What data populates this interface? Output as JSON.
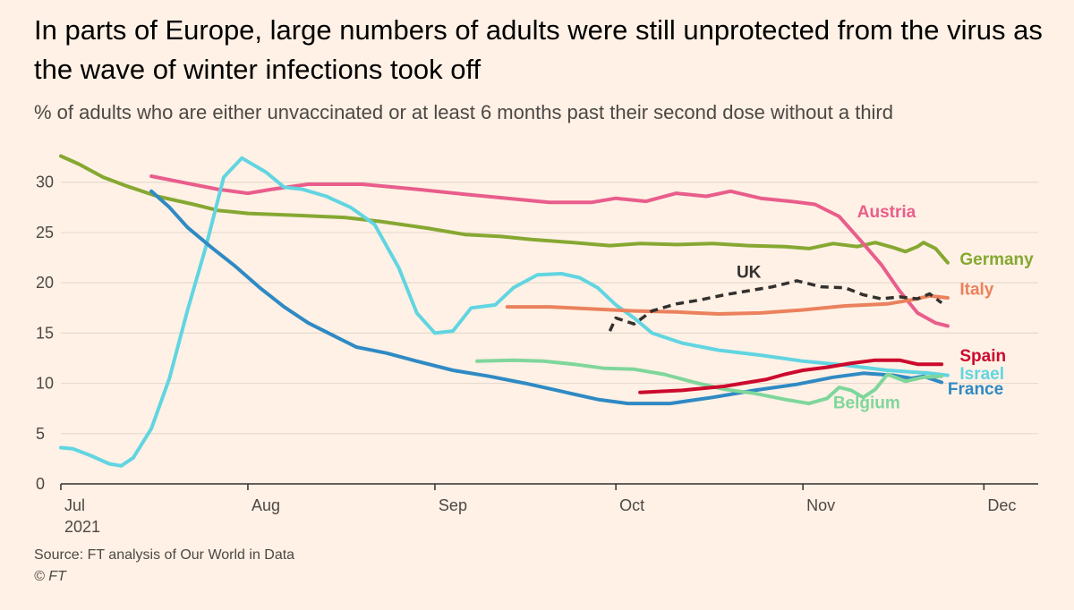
{
  "title": "In parts of Europe, large numbers of adults were still unprotected from the virus as the wave of winter infections took off",
  "subtitle": "% of adults who are either unvaccinated or at least 6 months past their second dose without a third",
  "source": "Source: FT analysis of Our World in Data",
  "copyright": "© FT",
  "chart_data": {
    "type": "line",
    "x_type": "date",
    "xlim": [
      "2021-07-01",
      "2021-12-10"
    ],
    "ylim": [
      0,
      33
    ],
    "y_ticks": [
      0,
      5,
      10,
      15,
      20,
      25,
      30
    ],
    "y_tick_labels": [
      "0",
      "5",
      "10",
      "15",
      "20",
      "25",
      "30"
    ],
    "x_ticks": [
      {
        "date": "2021-07-01",
        "label": "Jul",
        "sublabel": "2021"
      },
      {
        "date": "2021-08-01",
        "label": "Aug",
        "sublabel": ""
      },
      {
        "date": "2021-09-01",
        "label": "Sep",
        "sublabel": ""
      },
      {
        "date": "2021-10-01",
        "label": "Oct",
        "sublabel": ""
      },
      {
        "date": "2021-11-01",
        "label": "Nov",
        "sublabel": ""
      },
      {
        "date": "2021-12-01",
        "label": "Dec",
        "sublabel": ""
      }
    ],
    "grid": true,
    "legend": "inline labels",
    "series": [
      {
        "name": "Germany",
        "color": "#86A832",
        "dash": false,
        "points": [
          [
            "2021-07-01",
            32.6
          ],
          [
            "2021-07-04",
            31.8
          ],
          [
            "2021-07-08",
            30.5
          ],
          [
            "2021-07-12",
            29.6
          ],
          [
            "2021-07-17",
            28.6
          ],
          [
            "2021-07-23",
            27.8
          ],
          [
            "2021-07-27",
            27.2
          ],
          [
            "2021-08-01",
            26.9
          ],
          [
            "2021-08-09",
            26.7
          ],
          [
            "2021-08-17",
            26.5
          ],
          [
            "2021-08-23",
            26.1
          ],
          [
            "2021-08-31",
            25.4
          ],
          [
            "2021-09-06",
            24.8
          ],
          [
            "2021-09-12",
            24.6
          ],
          [
            "2021-09-17",
            24.3
          ],
          [
            "2021-09-24",
            24.0
          ],
          [
            "2021-09-30",
            23.7
          ],
          [
            "2021-10-05",
            23.9
          ],
          [
            "2021-10-11",
            23.8
          ],
          [
            "2021-10-17",
            23.9
          ],
          [
            "2021-10-23",
            23.7
          ],
          [
            "2021-10-29",
            23.6
          ],
          [
            "2021-11-02",
            23.4
          ],
          [
            "2021-11-06",
            23.9
          ],
          [
            "2021-11-10",
            23.6
          ],
          [
            "2021-11-13",
            24.0
          ],
          [
            "2021-11-16",
            23.5
          ],
          [
            "2021-11-18",
            23.1
          ],
          [
            "2021-11-20",
            23.6
          ],
          [
            "2021-11-21",
            24.0
          ],
          [
            "2021-11-23",
            23.4
          ],
          [
            "2021-11-25",
            22.0
          ]
        ]
      },
      {
        "name": "Austria",
        "color": "#E95D8C",
        "dash": false,
        "points": [
          [
            "2021-07-16",
            30.6
          ],
          [
            "2021-07-21",
            30.0
          ],
          [
            "2021-07-27",
            29.3
          ],
          [
            "2021-08-01",
            28.9
          ],
          [
            "2021-08-05",
            29.3
          ],
          [
            "2021-08-11",
            29.8
          ],
          [
            "2021-08-20",
            29.8
          ],
          [
            "2021-08-29",
            29.3
          ],
          [
            "2021-09-06",
            28.8
          ],
          [
            "2021-09-13",
            28.4
          ],
          [
            "2021-09-20",
            28.0
          ],
          [
            "2021-09-27",
            28.0
          ],
          [
            "2021-10-01",
            28.4
          ],
          [
            "2021-10-06",
            28.1
          ],
          [
            "2021-10-11",
            28.9
          ],
          [
            "2021-10-16",
            28.6
          ],
          [
            "2021-10-20",
            29.1
          ],
          [
            "2021-10-25",
            28.4
          ],
          [
            "2021-10-30",
            28.1
          ],
          [
            "2021-11-03",
            27.8
          ],
          [
            "2021-11-07",
            26.6
          ],
          [
            "2021-11-11",
            23.9
          ],
          [
            "2021-11-14",
            21.8
          ],
          [
            "2021-11-17",
            19.2
          ],
          [
            "2021-11-20",
            17.0
          ],
          [
            "2021-11-23",
            16.0
          ],
          [
            "2021-11-25",
            15.7
          ]
        ]
      },
      {
        "name": "Israel",
        "color": "#61D5E1",
        "dash": false,
        "points": [
          [
            "2021-07-01",
            3.6
          ],
          [
            "2021-07-03",
            3.5
          ],
          [
            "2021-07-06",
            2.8
          ],
          [
            "2021-07-09",
            2.0
          ],
          [
            "2021-07-11",
            1.8
          ],
          [
            "2021-07-13",
            2.6
          ],
          [
            "2021-07-16",
            5.5
          ],
          [
            "2021-07-19",
            10.5
          ],
          [
            "2021-07-22",
            17.3
          ],
          [
            "2021-07-25",
            23.5
          ],
          [
            "2021-07-28",
            30.5
          ],
          [
            "2021-07-31",
            32.4
          ],
          [
            "2021-08-04",
            31.0
          ],
          [
            "2021-08-07",
            29.5
          ],
          [
            "2021-08-10",
            29.3
          ],
          [
            "2021-08-14",
            28.6
          ],
          [
            "2021-08-18",
            27.5
          ],
          [
            "2021-08-22",
            25.8
          ],
          [
            "2021-08-26",
            21.5
          ],
          [
            "2021-08-29",
            17.0
          ],
          [
            "2021-09-01",
            15.0
          ],
          [
            "2021-09-04",
            15.2
          ],
          [
            "2021-09-07",
            17.5
          ],
          [
            "2021-09-11",
            17.8
          ],
          [
            "2021-09-14",
            19.5
          ],
          [
            "2021-09-18",
            20.8
          ],
          [
            "2021-09-22",
            20.9
          ],
          [
            "2021-09-25",
            20.5
          ],
          [
            "2021-09-28",
            19.5
          ],
          [
            "2021-10-01",
            17.8
          ],
          [
            "2021-10-04",
            16.5
          ],
          [
            "2021-10-07",
            15.0
          ],
          [
            "2021-10-12",
            14.0
          ],
          [
            "2021-10-18",
            13.3
          ],
          [
            "2021-10-25",
            12.8
          ],
          [
            "2021-11-01",
            12.2
          ],
          [
            "2021-11-08",
            11.8
          ],
          [
            "2021-11-15",
            11.3
          ],
          [
            "2021-11-22",
            11.0
          ],
          [
            "2021-11-25",
            10.8
          ]
        ]
      },
      {
        "name": "France",
        "color": "#2F8AC4",
        "dash": false,
        "points": [
          [
            "2021-07-16",
            29.1
          ],
          [
            "2021-07-19",
            27.5
          ],
          [
            "2021-07-22",
            25.5
          ],
          [
            "2021-07-26",
            23.5
          ],
          [
            "2021-07-30",
            21.6
          ],
          [
            "2021-08-03",
            19.5
          ],
          [
            "2021-08-07",
            17.6
          ],
          [
            "2021-08-11",
            16.0
          ],
          [
            "2021-08-15",
            14.8
          ],
          [
            "2021-08-19",
            13.6
          ],
          [
            "2021-08-24",
            13.0
          ],
          [
            "2021-08-29",
            12.2
          ],
          [
            "2021-09-04",
            11.3
          ],
          [
            "2021-09-10",
            10.7
          ],
          [
            "2021-09-16",
            10.0
          ],
          [
            "2021-09-22",
            9.2
          ],
          [
            "2021-09-28",
            8.4
          ],
          [
            "2021-10-03",
            8.0
          ],
          [
            "2021-10-10",
            8.0
          ],
          [
            "2021-10-17",
            8.6
          ],
          [
            "2021-10-24",
            9.3
          ],
          [
            "2021-10-31",
            9.9
          ],
          [
            "2021-11-06",
            10.6
          ],
          [
            "2021-11-11",
            11.0
          ],
          [
            "2021-11-16",
            10.8
          ],
          [
            "2021-11-19",
            10.5
          ],
          [
            "2021-11-21",
            10.7
          ],
          [
            "2021-11-24",
            10.1
          ]
        ]
      },
      {
        "name": "Belgium",
        "color": "#7FD69B",
        "dash": false,
        "points": [
          [
            "2021-09-08",
            12.2
          ],
          [
            "2021-09-14",
            12.3
          ],
          [
            "2021-09-19",
            12.2
          ],
          [
            "2021-09-24",
            11.9
          ],
          [
            "2021-09-29",
            11.5
          ],
          [
            "2021-10-04",
            11.4
          ],
          [
            "2021-10-09",
            10.9
          ],
          [
            "2021-10-14",
            10.1
          ],
          [
            "2021-10-19",
            9.4
          ],
          [
            "2021-10-24",
            9.0
          ],
          [
            "2021-10-29",
            8.4
          ],
          [
            "2021-11-02",
            8.0
          ],
          [
            "2021-11-05",
            8.5
          ],
          [
            "2021-11-07",
            9.6
          ],
          [
            "2021-11-09",
            9.3
          ],
          [
            "2021-11-11",
            8.6
          ],
          [
            "2021-11-13",
            9.4
          ],
          [
            "2021-11-15",
            10.9
          ],
          [
            "2021-11-18",
            10.2
          ],
          [
            "2021-11-21",
            10.6
          ],
          [
            "2021-11-24",
            10.7
          ]
        ]
      },
      {
        "name": "Italy",
        "color": "#EB815D",
        "dash": false,
        "points": [
          [
            "2021-09-13",
            17.6
          ],
          [
            "2021-09-20",
            17.6
          ],
          [
            "2021-09-27",
            17.4
          ],
          [
            "2021-10-04",
            17.2
          ],
          [
            "2021-10-11",
            17.1
          ],
          [
            "2021-10-18",
            16.9
          ],
          [
            "2021-10-25",
            17.0
          ],
          [
            "2021-11-01",
            17.3
          ],
          [
            "2021-11-08",
            17.7
          ],
          [
            "2021-11-15",
            17.9
          ],
          [
            "2021-11-19",
            18.3
          ],
          [
            "2021-11-22",
            18.7
          ],
          [
            "2021-11-25",
            18.5
          ]
        ]
      },
      {
        "name": "UK",
        "color": "#33302E",
        "dash": true,
        "points": [
          [
            "2021-09-30",
            15.2
          ],
          [
            "2021-10-01",
            16.5
          ],
          [
            "2021-10-04",
            15.9
          ],
          [
            "2021-10-07",
            17.2
          ],
          [
            "2021-10-11",
            17.9
          ],
          [
            "2021-10-15",
            18.3
          ],
          [
            "2021-10-19",
            18.8
          ],
          [
            "2021-10-23",
            19.2
          ],
          [
            "2021-10-27",
            19.6
          ],
          [
            "2021-10-31",
            20.2
          ],
          [
            "2021-11-04",
            19.6
          ],
          [
            "2021-11-08",
            19.5
          ],
          [
            "2021-11-11",
            18.8
          ],
          [
            "2021-11-14",
            18.4
          ],
          [
            "2021-11-17",
            18.6
          ],
          [
            "2021-11-20",
            18.4
          ],
          [
            "2021-11-22",
            18.9
          ],
          [
            "2021-11-24",
            18.0
          ]
        ]
      },
      {
        "name": "Spain",
        "color": "#CC0A2E",
        "dash": false,
        "points": [
          [
            "2021-10-05",
            9.1
          ],
          [
            "2021-10-12",
            9.3
          ],
          [
            "2021-10-19",
            9.7
          ],
          [
            "2021-10-26",
            10.4
          ],
          [
            "2021-10-29",
            10.9
          ],
          [
            "2021-11-01",
            11.3
          ],
          [
            "2021-11-05",
            11.6
          ],
          [
            "2021-11-09",
            12.0
          ],
          [
            "2021-11-13",
            12.3
          ],
          [
            "2021-11-17",
            12.3
          ],
          [
            "2021-11-20",
            11.9
          ],
          [
            "2021-11-24",
            11.9
          ]
        ]
      }
    ],
    "labels": [
      {
        "series": "Austria",
        "text": "Austria",
        "color": "#E95D8C",
        "at": [
          "2021-11-10",
          26.5
        ]
      },
      {
        "series": "Germany",
        "text": "Germany",
        "color": "#86A832",
        "at": [
          "2021-11-27",
          21.8
        ]
      },
      {
        "series": "UK",
        "text": "UK",
        "color": "#33302E",
        "at": [
          "2021-10-21",
          20.5
        ]
      },
      {
        "series": "Italy",
        "text": "Italy",
        "color": "#EB815D",
        "at": [
          "2021-11-27",
          18.8
        ]
      },
      {
        "series": "Spain",
        "text": "Spain",
        "color": "#CC0A2E",
        "at": [
          "2021-11-27",
          12.2
        ]
      },
      {
        "series": "Israel",
        "text": "Israel",
        "color": "#61D5E1",
        "at": [
          "2021-11-27",
          10.4
        ]
      },
      {
        "series": "Belgium",
        "text": "Belgium",
        "color": "#7FD69B",
        "at": [
          "2021-11-06",
          7.5
        ]
      },
      {
        "series": "France",
        "text": "France",
        "color": "#2F8AC4",
        "at": [
          "2021-11-25",
          8.9
        ]
      }
    ]
  }
}
